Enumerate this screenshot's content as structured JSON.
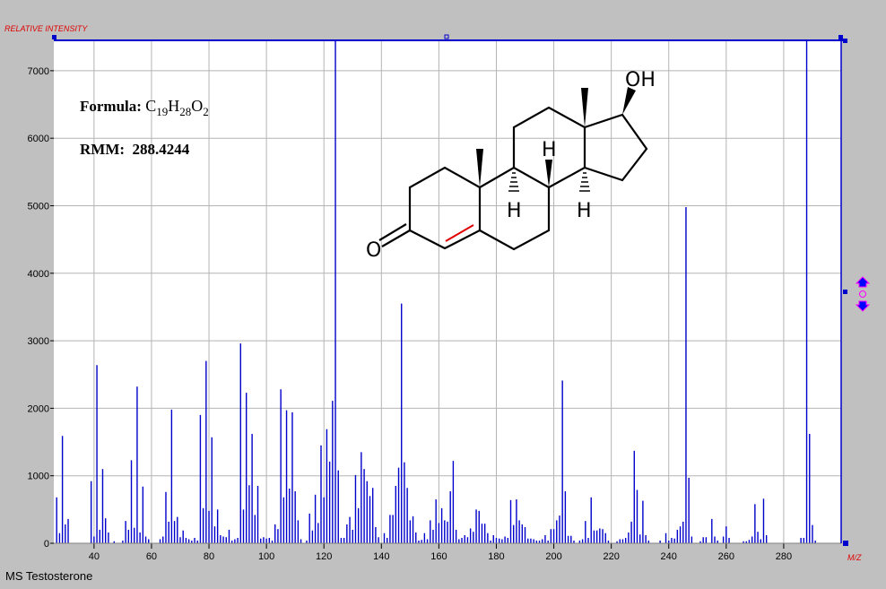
{
  "caption": "MS Testosterone",
  "info": {
    "formula_label": "Formula:",
    "formula_parts": [
      "C",
      "19",
      "H",
      "28",
      "O",
      "2"
    ],
    "rmm_label": "RMM:",
    "rmm_value": "288.4244"
  },
  "molecule": {
    "labels": {
      "oxygen": "O",
      "hydroxyl": "OH",
      "h8": "H",
      "h9": "H",
      "h14": "H"
    },
    "highlight_bond_color": "#e00000"
  },
  "chart_data": {
    "type": "bar",
    "title": "",
    "ylabel": "RELATIVE INTENSITY",
    "xlabel": "M/Z",
    "xlim": [
      26,
      300
    ],
    "ylim": [
      0,
      7450
    ],
    "xticks": [
      40,
      60,
      80,
      100,
      120,
      140,
      160,
      180,
      200,
      220,
      240,
      260,
      280
    ],
    "yticks": [
      0,
      1000,
      2000,
      3000,
      4000,
      5000,
      6000,
      7000
    ],
    "grid": true,
    "bar_color": "#0000cc",
    "label_color": "#e00000",
    "series": [
      {
        "peaks": [
          [
            27,
            680
          ],
          [
            28,
            150
          ],
          [
            29,
            1590
          ],
          [
            30,
            280
          ],
          [
            31,
            360
          ],
          [
            39,
            920
          ],
          [
            40,
            100
          ],
          [
            41,
            2640
          ],
          [
            42,
            200
          ],
          [
            43,
            1100
          ],
          [
            44,
            370
          ],
          [
            45,
            160
          ],
          [
            47,
            30
          ],
          [
            50,
            40
          ],
          [
            51,
            330
          ],
          [
            52,
            200
          ],
          [
            53,
            1230
          ],
          [
            54,
            230
          ],
          [
            55,
            2320
          ],
          [
            56,
            160
          ],
          [
            57,
            840
          ],
          [
            58,
            100
          ],
          [
            59,
            60
          ],
          [
            63,
            60
          ],
          [
            64,
            100
          ],
          [
            65,
            760
          ],
          [
            66,
            320
          ],
          [
            67,
            1980
          ],
          [
            68,
            330
          ],
          [
            69,
            390
          ],
          [
            70,
            90
          ],
          [
            71,
            190
          ],
          [
            72,
            80
          ],
          [
            73,
            60
          ],
          [
            74,
            40
          ],
          [
            75,
            80
          ],
          [
            76,
            40
          ],
          [
            77,
            1900
          ],
          [
            78,
            520
          ],
          [
            79,
            2700
          ],
          [
            80,
            480
          ],
          [
            81,
            1570
          ],
          [
            82,
            250
          ],
          [
            83,
            500
          ],
          [
            84,
            120
          ],
          [
            85,
            100
          ],
          [
            86,
            90
          ],
          [
            87,
            200
          ],
          [
            88,
            40
          ],
          [
            89,
            60
          ],
          [
            90,
            80
          ],
          [
            91,
            2960
          ],
          [
            92,
            500
          ],
          [
            93,
            2230
          ],
          [
            94,
            860
          ],
          [
            95,
            1620
          ],
          [
            96,
            420
          ],
          [
            97,
            850
          ],
          [
            98,
            70
          ],
          [
            99,
            90
          ],
          [
            100,
            70
          ],
          [
            101,
            80
          ],
          [
            102,
            40
          ],
          [
            103,
            280
          ],
          [
            104,
            210
          ],
          [
            105,
            2280
          ],
          [
            106,
            680
          ],
          [
            107,
            1970
          ],
          [
            108,
            810
          ],
          [
            109,
            1940
          ],
          [
            110,
            770
          ],
          [
            111,
            340
          ],
          [
            112,
            60
          ],
          [
            114,
            40
          ],
          [
            115,
            440
          ],
          [
            116,
            190
          ],
          [
            117,
            720
          ],
          [
            118,
            300
          ],
          [
            119,
            1450
          ],
          [
            120,
            680
          ],
          [
            121,
            1690
          ],
          [
            122,
            1210
          ],
          [
            123,
            2110
          ],
          [
            124,
            7450
          ],
          [
            125,
            1080
          ],
          [
            126,
            80
          ],
          [
            127,
            80
          ],
          [
            128,
            280
          ],
          [
            129,
            390
          ],
          [
            130,
            200
          ],
          [
            131,
            1010
          ],
          [
            132,
            520
          ],
          [
            133,
            1350
          ],
          [
            134,
            1100
          ],
          [
            135,
            920
          ],
          [
            136,
            700
          ],
          [
            137,
            820
          ],
          [
            138,
            240
          ],
          [
            139,
            90
          ],
          [
            141,
            150
          ],
          [
            142,
            80
          ],
          [
            143,
            420
          ],
          [
            144,
            420
          ],
          [
            145,
            850
          ],
          [
            146,
            1120
          ],
          [
            147,
            3550
          ],
          [
            148,
            1200
          ],
          [
            149,
            820
          ],
          [
            150,
            340
          ],
          [
            151,
            400
          ],
          [
            152,
            160
          ],
          [
            153,
            40
          ],
          [
            154,
            50
          ],
          [
            155,
            150
          ],
          [
            156,
            60
          ],
          [
            157,
            340
          ],
          [
            158,
            200
          ],
          [
            159,
            650
          ],
          [
            160,
            300
          ],
          [
            161,
            520
          ],
          [
            162,
            340
          ],
          [
            163,
            320
          ],
          [
            164,
            770
          ],
          [
            165,
            1220
          ],
          [
            166,
            200
          ],
          [
            167,
            60
          ],
          [
            168,
            80
          ],
          [
            169,
            120
          ],
          [
            170,
            90
          ],
          [
            171,
            220
          ],
          [
            172,
            170
          ],
          [
            173,
            500
          ],
          [
            174,
            480
          ],
          [
            175,
            290
          ],
          [
            176,
            290
          ],
          [
            177,
            150
          ],
          [
            178,
            40
          ],
          [
            179,
            120
          ],
          [
            180,
            80
          ],
          [
            181,
            70
          ],
          [
            182,
            60
          ],
          [
            183,
            100
          ],
          [
            184,
            80
          ],
          [
            185,
            640
          ],
          [
            186,
            270
          ],
          [
            187,
            650
          ],
          [
            188,
            340
          ],
          [
            189,
            280
          ],
          [
            190,
            240
          ],
          [
            191,
            70
          ],
          [
            192,
            70
          ],
          [
            193,
            60
          ],
          [
            194,
            40
          ],
          [
            195,
            40
          ],
          [
            196,
            60
          ],
          [
            197,
            120
          ],
          [
            198,
            40
          ],
          [
            199,
            210
          ],
          [
            200,
            210
          ],
          [
            201,
            340
          ],
          [
            202,
            410
          ],
          [
            203,
            2410
          ],
          [
            204,
            770
          ],
          [
            205,
            110
          ],
          [
            206,
            110
          ],
          [
            207,
            40
          ],
          [
            209,
            40
          ],
          [
            210,
            60
          ],
          [
            211,
            330
          ],
          [
            212,
            80
          ],
          [
            213,
            680
          ],
          [
            214,
            190
          ],
          [
            215,
            190
          ],
          [
            216,
            220
          ],
          [
            217,
            210
          ],
          [
            218,
            150
          ],
          [
            219,
            40
          ],
          [
            222,
            30
          ],
          [
            223,
            60
          ],
          [
            224,
            60
          ],
          [
            225,
            80
          ],
          [
            226,
            160
          ],
          [
            227,
            320
          ],
          [
            228,
            1370
          ],
          [
            229,
            790
          ],
          [
            230,
            130
          ],
          [
            231,
            630
          ],
          [
            232,
            120
          ],
          [
            233,
            40
          ],
          [
            237,
            40
          ],
          [
            239,
            150
          ],
          [
            240,
            40
          ],
          [
            241,
            80
          ],
          [
            242,
            70
          ],
          [
            243,
            200
          ],
          [
            244,
            250
          ],
          [
            245,
            320
          ],
          [
            246,
            4980
          ],
          [
            247,
            970
          ],
          [
            248,
            100
          ],
          [
            251,
            30
          ],
          [
            252,
            90
          ],
          [
            253,
            90
          ],
          [
            255,
            360
          ],
          [
            256,
            100
          ],
          [
            257,
            40
          ],
          [
            259,
            100
          ],
          [
            260,
            250
          ],
          [
            261,
            80
          ],
          [
            266,
            30
          ],
          [
            267,
            30
          ],
          [
            268,
            50
          ],
          [
            269,
            100
          ],
          [
            270,
            580
          ],
          [
            271,
            170
          ],
          [
            272,
            60
          ],
          [
            273,
            660
          ],
          [
            274,
            120
          ],
          [
            286,
            80
          ],
          [
            287,
            80
          ],
          [
            288,
            7450
          ],
          [
            289,
            1620
          ],
          [
            290,
            270
          ],
          [
            291,
            40
          ]
        ]
      }
    ]
  }
}
